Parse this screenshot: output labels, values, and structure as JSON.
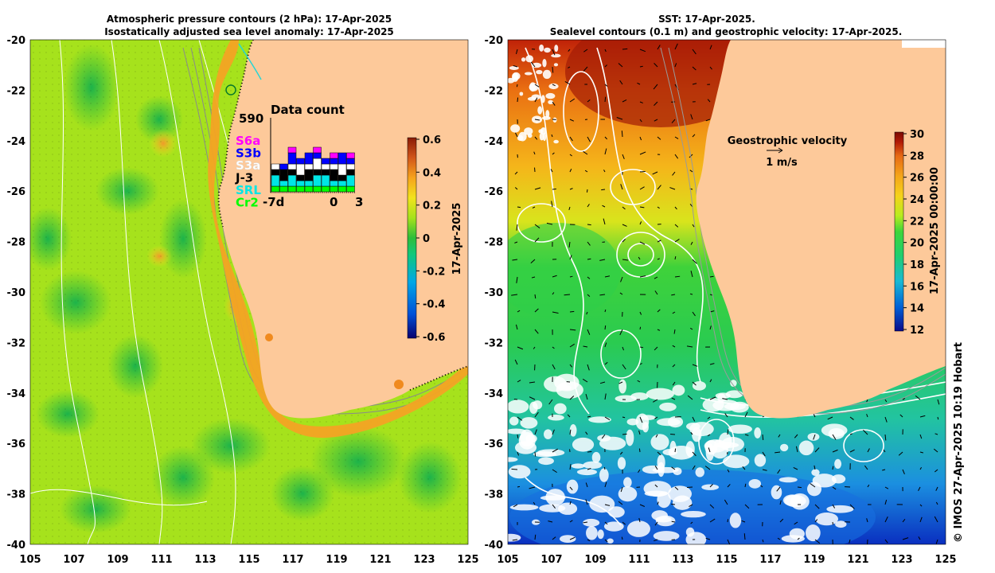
{
  "left_panel": {
    "title_line1": "Atmospheric pressure contours (2 hPa): 17-Apr-2025",
    "title_line2": "Isostatically adjusted sea level anomaly: 17-Apr-2025",
    "colorbar_label": "17-Apr-2025",
    "colorbar_ticks": [
      "0.6",
      "0.4",
      "0.2",
      "0",
      "-0.2",
      "-0.4",
      "-0.6"
    ],
    "colorbar_range": [
      -0.6,
      0.6
    ]
  },
  "right_panel": {
    "title_line1": "SST: 17-Apr-2025.",
    "title_line2": "Sealevel contours (0.1 m) and geostrophic velocity: 17-Apr-2025.",
    "colorbar_label": "17-Apr-2025 00:00:00",
    "colorbar_ticks": [
      "30",
      "28",
      "26",
      "24",
      "22",
      "20",
      "18",
      "16",
      "14",
      "12"
    ],
    "colorbar_range": [
      12,
      30
    ],
    "velocity_title": "Geostrophic velocity",
    "velocity_scale": "1 m/s"
  },
  "axes": {
    "lat_ticks": [
      "-20",
      "-22",
      "-24",
      "-26",
      "-28",
      "-30",
      "-32",
      "-34",
      "-36",
      "-38",
      "-40"
    ],
    "lon_ticks": [
      "105",
      "107",
      "109",
      "111",
      "113",
      "115",
      "117",
      "119",
      "121",
      "123",
      "125"
    ]
  },
  "data_count": {
    "title": "Data count",
    "max_label": "590",
    "x_labels": [
      "-7d",
      "0",
      "3"
    ],
    "satellites": [
      {
        "name": "S6a",
        "color": "#ff00ff"
      },
      {
        "name": "S3b",
        "color": "#0000ff"
      },
      {
        "name": "S3a",
        "color": "#ffffff"
      },
      {
        "name": "J-3",
        "color": "#000000"
      },
      {
        "name": "SRL",
        "color": "#00e5e5"
      },
      {
        "name": "Cr2",
        "color": "#00ff00"
      }
    ]
  },
  "credit": "© IMOS 27-Apr-2025 10:19 Hobart",
  "colors": {
    "land": "#fdc99a",
    "sla_gradient": [
      "#08006e",
      "#0050d8",
      "#00a7e6",
      "#11c87a",
      "#2dbd3a",
      "#a6e21c",
      "#f2e31c",
      "#f6a31c",
      "#d2561a",
      "#8a1b06"
    ],
    "sst_gradient": [
      "#0a0a8a",
      "#0060d6",
      "#18b9d4",
      "#1fcf6e",
      "#3dd53a",
      "#b8ec1e",
      "#f5d21a",
      "#f4a51a",
      "#e76a14",
      "#b21a06",
      "#7a0a04"
    ]
  }
}
